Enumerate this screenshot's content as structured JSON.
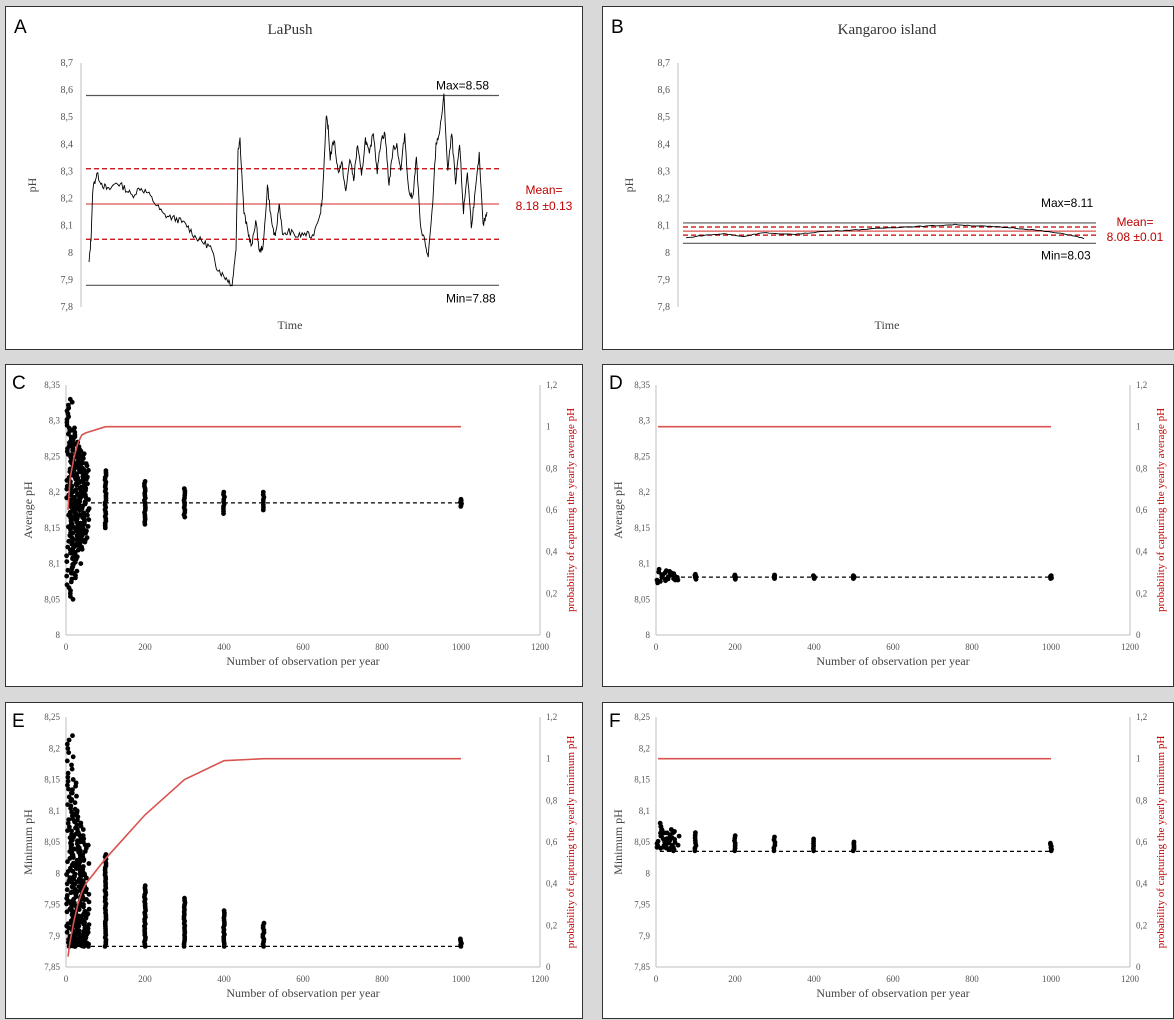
{
  "chart_data": [
    {
      "panel": "A",
      "type": "line",
      "title": "LaPush",
      "xlabel": "Time",
      "ylabel": "pH",
      "ylim": [
        7.8,
        8.7
      ],
      "yticks": [
        "7,8",
        "7,9",
        "8",
        "8,1",
        "8,2",
        "8,3",
        "8,4",
        "8,5",
        "8,6",
        "8,7"
      ],
      "series_shape": [
        [
          0,
          7.96
        ],
        [
          2,
          8.05
        ],
        [
          4,
          8.24
        ],
        [
          8,
          8.29
        ],
        [
          14,
          8.25
        ],
        [
          20,
          8.23
        ],
        [
          28,
          8.26
        ],
        [
          36,
          8.24
        ],
        [
          44,
          8.21
        ],
        [
          52,
          8.24
        ],
        [
          60,
          8.22
        ],
        [
          68,
          8.18
        ],
        [
          76,
          8.14
        ],
        [
          84,
          8.13
        ],
        [
          92,
          8.12
        ],
        [
          100,
          8.1
        ],
        [
          108,
          8.06
        ],
        [
          116,
          8.04
        ],
        [
          124,
          8.02
        ],
        [
          130,
          7.95
        ],
        [
          136,
          7.92
        ],
        [
          142,
          7.9
        ],
        [
          146,
          7.88
        ],
        [
          150,
          8.02
        ],
        [
          152,
          8.38
        ],
        [
          154,
          8.42
        ],
        [
          158,
          8.15
        ],
        [
          162,
          8.08
        ],
        [
          166,
          8.02
        ],
        [
          170,
          8.12
        ],
        [
          174,
          8.0
        ],
        [
          178,
          8.03
        ],
        [
          182,
          8.25
        ],
        [
          186,
          8.12
        ],
        [
          190,
          8.05
        ],
        [
          194,
          8.18
        ],
        [
          198,
          8.06
        ],
        [
          204,
          8.08
        ],
        [
          212,
          8.06
        ],
        [
          220,
          8.07
        ],
        [
          228,
          8.06
        ],
        [
          236,
          8.15
        ],
        [
          238,
          8.2
        ],
        [
          242,
          8.5
        ],
        [
          244,
          8.46
        ],
        [
          246,
          8.35
        ],
        [
          250,
          8.42
        ],
        [
          254,
          8.3
        ],
        [
          258,
          8.33
        ],
        [
          262,
          8.22
        ],
        [
          266,
          8.35
        ],
        [
          270,
          8.27
        ],
        [
          274,
          8.4
        ],
        [
          278,
          8.28
        ],
        [
          282,
          8.42
        ],
        [
          286,
          8.36
        ],
        [
          290,
          8.45
        ],
        [
          294,
          8.3
        ],
        [
          298,
          8.42
        ],
        [
          302,
          8.44
        ],
        [
          306,
          8.25
        ],
        [
          310,
          8.38
        ],
        [
          314,
          8.4
        ],
        [
          318,
          8.3
        ],
        [
          322,
          8.44
        ],
        [
          326,
          8.23
        ],
        [
          330,
          8.2
        ],
        [
          334,
          8.35
        ],
        [
          338,
          8.1
        ],
        [
          342,
          8.05
        ],
        [
          346,
          7.98
        ],
        [
          350,
          8.15
        ],
        [
          354,
          8.4
        ],
        [
          358,
          8.45
        ],
        [
          362,
          8.58
        ],
        [
          366,
          8.3
        ],
        [
          370,
          8.44
        ],
        [
          374,
          8.25
        ],
        [
          378,
          8.4
        ],
        [
          382,
          8.15
        ],
        [
          386,
          8.3
        ],
        [
          390,
          8.1
        ],
        [
          394,
          8.22
        ],
        [
          398,
          8.36
        ],
        [
          402,
          8.1
        ],
        [
          406,
          8.15
        ]
      ],
      "lines": [
        {
          "label": "Max=8.58",
          "value": 8.58,
          "style": "solid-gray"
        },
        {
          "label": "Min=7.88",
          "value": 7.88,
          "style": "solid-gray"
        },
        {
          "label": "Mean=",
          "sublabel": "8.18 ±0.13",
          "value": 8.18,
          "style": "solid-red"
        },
        {
          "value": 8.31,
          "style": "dashed-red"
        },
        {
          "value": 8.05,
          "style": "dashed-red"
        }
      ]
    },
    {
      "panel": "B",
      "type": "line",
      "title": "Kangaroo  island",
      "xlabel": "Time",
      "ylabel": "pH",
      "ylim": [
        7.8,
        8.7
      ],
      "yticks": [
        "7,8",
        "7,9",
        "8",
        "8,1",
        "8,2",
        "8,3",
        "8,4",
        "8,5",
        "8,6",
        "8,7"
      ],
      "series_shape": [
        [
          0,
          8.055
        ],
        [
          20,
          8.065
        ],
        [
          40,
          8.07
        ],
        [
          60,
          8.06
        ],
        [
          80,
          8.075
        ],
        [
          100,
          8.068
        ],
        [
          120,
          8.07
        ],
        [
          140,
          8.078
        ],
        [
          160,
          8.082
        ],
        [
          180,
          8.085
        ],
        [
          200,
          8.09
        ],
        [
          220,
          8.094
        ],
        [
          240,
          8.097
        ],
        [
          260,
          8.1
        ],
        [
          280,
          8.104
        ],
        [
          300,
          8.1
        ],
        [
          320,
          8.096
        ],
        [
          340,
          8.092
        ],
        [
          360,
          8.085
        ],
        [
          380,
          8.076
        ],
        [
          400,
          8.066
        ],
        [
          414,
          8.052
        ]
      ],
      "lines": [
        {
          "label": "Max=8.11",
          "value": 8.11,
          "style": "solid-gray"
        },
        {
          "label": "Min=8.03",
          "value": 8.035,
          "style": "solid-gray"
        },
        {
          "label": "Mean=",
          "sublabel": "8.08 ±0.01",
          "value": 8.08,
          "style": "solid-red"
        },
        {
          "value": 8.095,
          "style": "dashed-red"
        },
        {
          "value": 8.065,
          "style": "dashed-red"
        }
      ]
    },
    {
      "panel": "C",
      "type": "scatter",
      "xlabel": "Number of observation per year",
      "ylabel": "Average  pH",
      "ylabel_right": "probability of capturing the yearly average pH",
      "xlim": [
        0,
        1200
      ],
      "ylim": [
        8,
        8.35
      ],
      "ylim_right": [
        0,
        1.2
      ],
      "xticks": [
        "0",
        "200",
        "400",
        "600",
        "800",
        "1000",
        "1200"
      ],
      "yticks": [
        "8",
        "8,05",
        "8,1",
        "8,15",
        "8,2",
        "8,25",
        "8,3",
        "8,35"
      ],
      "yticks_right": [
        "0",
        "0,2",
        "0,4",
        "0,6",
        "0,8",
        "1",
        "1,2"
      ],
      "reference_value": 8.185,
      "spread": [
        {
          "x": 10,
          "min": 8.05,
          "max": 8.33
        },
        {
          "x": 20,
          "min": 8.08,
          "max": 8.29
        },
        {
          "x": 30,
          "min": 8.1,
          "max": 8.27
        },
        {
          "x": 40,
          "min": 8.12,
          "max": 8.26
        },
        {
          "x": 50,
          "min": 8.13,
          "max": 8.24
        },
        {
          "x": 100,
          "min": 8.15,
          "max": 8.23
        },
        {
          "x": 200,
          "min": 8.155,
          "max": 8.215
        },
        {
          "x": 300,
          "min": 8.165,
          "max": 8.205
        },
        {
          "x": 400,
          "min": 8.17,
          "max": 8.2
        },
        {
          "x": 500,
          "min": 8.175,
          "max": 8.2
        },
        {
          "x": 1000,
          "min": 8.18,
          "max": 8.19
        }
      ],
      "probability": {
        "x": [
          5,
          10,
          20,
          30,
          40,
          50,
          100,
          200,
          300,
          400,
          500,
          1000
        ],
        "y": [
          0.6,
          0.75,
          0.85,
          0.92,
          0.96,
          0.97,
          1,
          1,
          1,
          1,
          1,
          1
        ]
      }
    },
    {
      "panel": "D",
      "type": "scatter",
      "xlabel": "Number of observation per year",
      "ylabel": "Average pH",
      "ylabel_right": "probability of capturing the yearly average pH",
      "xlim": [
        0,
        1200
      ],
      "ylim": [
        8,
        8.35
      ],
      "ylim_right": [
        0,
        1.2
      ],
      "xticks": [
        "0",
        "200",
        "400",
        "600",
        "800",
        "1000",
        "1200"
      ],
      "yticks": [
        "8",
        "8,05",
        "8,1",
        "8,15",
        "8,2",
        "8,25",
        "8,3",
        "8,35"
      ],
      "yticks_right": [
        "0",
        "0,2",
        "0,4",
        "0,6",
        "0,8",
        "1",
        "1,2"
      ],
      "reference_value": 8.081,
      "spread": [
        {
          "x": 10,
          "min": 8.073,
          "max": 8.092
        },
        {
          "x": 20,
          "min": 8.075,
          "max": 8.09
        },
        {
          "x": 30,
          "min": 8.076,
          "max": 8.089
        },
        {
          "x": 40,
          "min": 8.077,
          "max": 8.087
        },
        {
          "x": 50,
          "min": 8.077,
          "max": 8.086
        },
        {
          "x": 100,
          "min": 8.078,
          "max": 8.085
        },
        {
          "x": 200,
          "min": 8.078,
          "max": 8.084
        },
        {
          "x": 300,
          "min": 8.079,
          "max": 8.084
        },
        {
          "x": 400,
          "min": 8.079,
          "max": 8.083
        },
        {
          "x": 500,
          "min": 8.079,
          "max": 8.083
        },
        {
          "x": 1000,
          "min": 8.079,
          "max": 8.083
        }
      ],
      "probability": {
        "x": [
          5,
          1000
        ],
        "y": [
          1,
          1
        ]
      }
    },
    {
      "panel": "E",
      "type": "scatter",
      "xlabel": "Number of observation per year",
      "ylabel": "Minimum pH",
      "ylabel_right": "probability of capturing the yearly minimum pH",
      "xlim": [
        0,
        1200
      ],
      "ylim": [
        7.85,
        8.25
      ],
      "ylim_right": [
        0,
        1.2
      ],
      "xticks": [
        "0",
        "200",
        "400",
        "600",
        "800",
        "1000",
        "1200"
      ],
      "yticks": [
        "7,85",
        "7,9",
        "7,95",
        "8",
        "8,05",
        "8,1",
        "8,15",
        "8,2",
        "8,25"
      ],
      "yticks_right": [
        "0",
        "0,2",
        "0,4",
        "0,6",
        "0,8",
        "1",
        "1,2"
      ],
      "reference_value": 7.883,
      "spread": [
        {
          "x": 10,
          "min": 7.883,
          "max": 8.22
        },
        {
          "x": 20,
          "min": 7.883,
          "max": 8.15
        },
        {
          "x": 30,
          "min": 7.883,
          "max": 8.1
        },
        {
          "x": 40,
          "min": 7.883,
          "max": 8.07
        },
        {
          "x": 50,
          "min": 7.883,
          "max": 8.05
        },
        {
          "x": 100,
          "min": 7.883,
          "max": 8.03
        },
        {
          "x": 200,
          "min": 7.883,
          "max": 7.98
        },
        {
          "x": 300,
          "min": 7.883,
          "max": 7.96
        },
        {
          "x": 400,
          "min": 7.883,
          "max": 7.94
        },
        {
          "x": 500,
          "min": 7.883,
          "max": 7.92
        },
        {
          "x": 1000,
          "min": 7.883,
          "max": 7.895
        }
      ],
      "probability": {
        "x": [
          5,
          10,
          20,
          30,
          40,
          50,
          100,
          200,
          300,
          400,
          500,
          1000
        ],
        "y": [
          0.05,
          0.12,
          0.22,
          0.3,
          0.36,
          0.4,
          0.52,
          0.73,
          0.9,
          0.99,
          1,
          1
        ]
      }
    },
    {
      "panel": "F",
      "type": "scatter",
      "xlabel": "Number of observation per year",
      "ylabel": "Minimum pH",
      "ylabel_right": "probability of capturing the yearly minimum pH",
      "xlim": [
        0,
        1200
      ],
      "ylim": [
        7.85,
        8.25
      ],
      "ylim_right": [
        0,
        1.2
      ],
      "xticks": [
        "0",
        "200",
        "400",
        "600",
        "800",
        "1000",
        "1200"
      ],
      "yticks": [
        "7,85",
        "7,9",
        "7,95",
        "8",
        "8,05",
        "8,1",
        "8,15",
        "8,2",
        "8,25"
      ],
      "yticks_right": [
        "0",
        "0,2",
        "0,4",
        "0,6",
        "0,8",
        "1",
        "1,2"
      ],
      "reference_value": 8.035,
      "spread": [
        {
          "x": 10,
          "min": 8.04,
          "max": 8.08
        },
        {
          "x": 20,
          "min": 8.04,
          "max": 8.075
        },
        {
          "x": 30,
          "min": 8.038,
          "max": 8.07
        },
        {
          "x": 40,
          "min": 8.037,
          "max": 8.067
        },
        {
          "x": 50,
          "min": 8.036,
          "max": 8.065
        },
        {
          "x": 100,
          "min": 8.036,
          "max": 8.065
        },
        {
          "x": 200,
          "min": 8.036,
          "max": 8.06
        },
        {
          "x": 300,
          "min": 8.036,
          "max": 8.058
        },
        {
          "x": 400,
          "min": 8.036,
          "max": 8.055
        },
        {
          "x": 500,
          "min": 8.036,
          "max": 8.05
        },
        {
          "x": 1000,
          "min": 8.036,
          "max": 8.048
        }
      ],
      "probability": {
        "x": [
          5,
          1000
        ],
        "y": [
          1,
          1
        ]
      }
    }
  ],
  "colors": {
    "series": "#000000",
    "red": "#c00000",
    "red_line": "#d9534f",
    "gray_line": "#555555",
    "axis": "#bfbfbf"
  }
}
